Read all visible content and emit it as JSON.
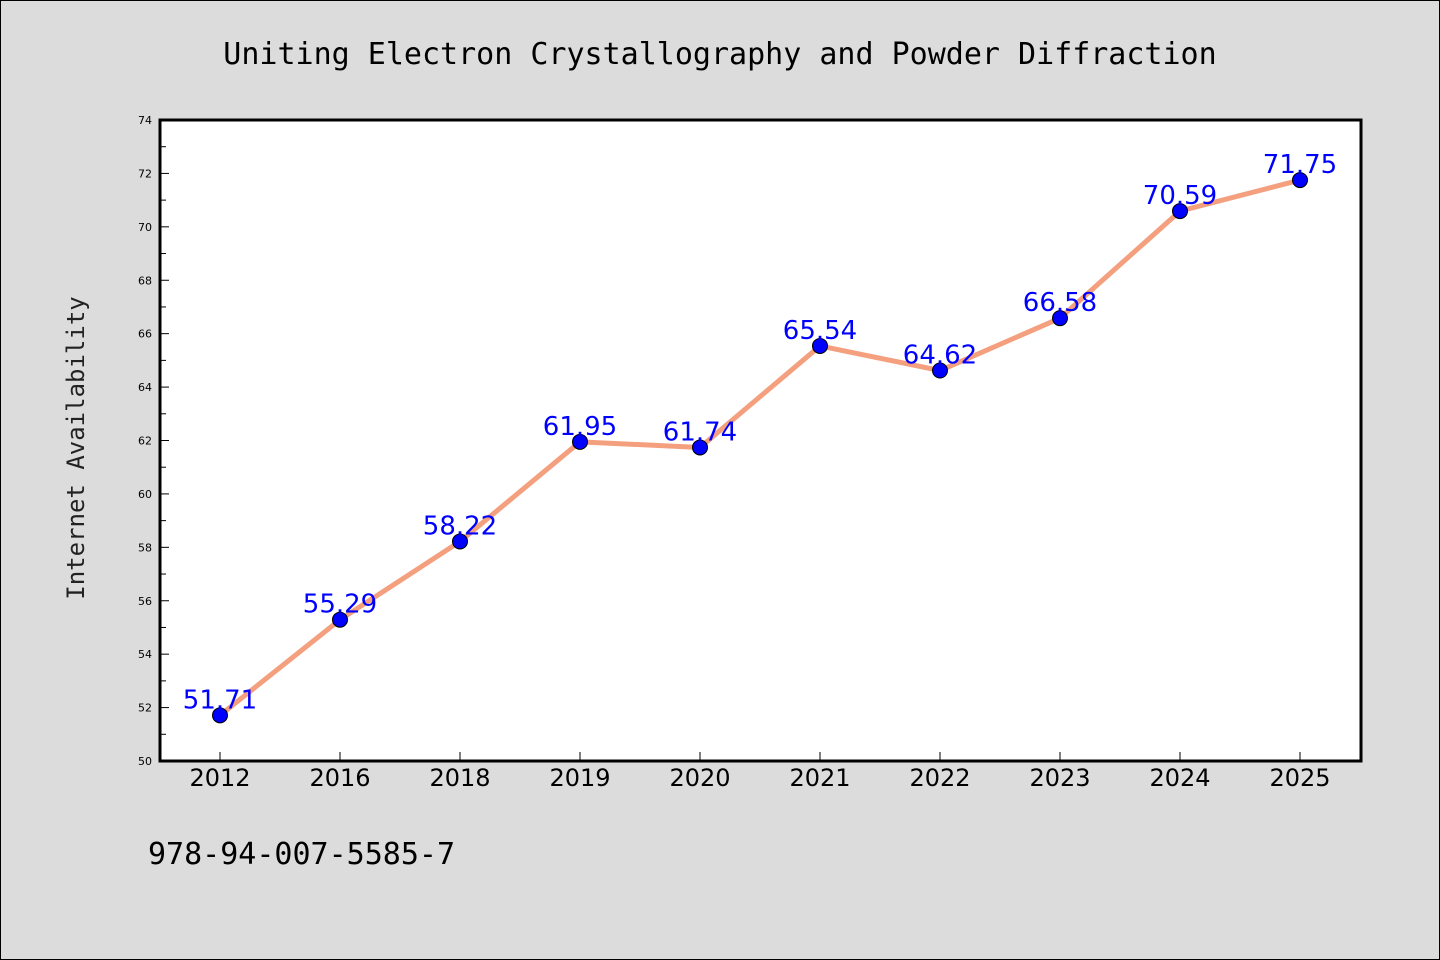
{
  "chart_data": {
    "type": "line",
    "title": "Uniting Electron Crystallography and Powder Diffraction",
    "xlabel": "",
    "ylabel": "Internet Availability",
    "categories": [
      "2012",
      "2016",
      "2018",
      "2019",
      "2020",
      "2021",
      "2022",
      "2023",
      "2024",
      "2025"
    ],
    "values": [
      51.71,
      55.29,
      58.22,
      61.95,
      61.74,
      65.54,
      64.62,
      66.58,
      70.59,
      71.75
    ],
    "data_labels": [
      "51.71",
      "55.29",
      "58.22",
      "61.95",
      "61.74",
      "65.54",
      "64.62",
      "66.58",
      "70.59",
      "71.75"
    ],
    "ylim": [
      50,
      74
    ],
    "yticks": [
      50,
      52,
      54,
      56,
      58,
      60,
      62,
      64,
      66,
      68,
      70,
      72,
      74
    ],
    "grid": false,
    "line_color": "#f4a07f",
    "marker_color": "#0000ff",
    "label_color": "#0000ff",
    "background_color": "#dcdcdc",
    "plot_background": "#ffffff"
  },
  "footer_text": "978-94-007-5585-7"
}
